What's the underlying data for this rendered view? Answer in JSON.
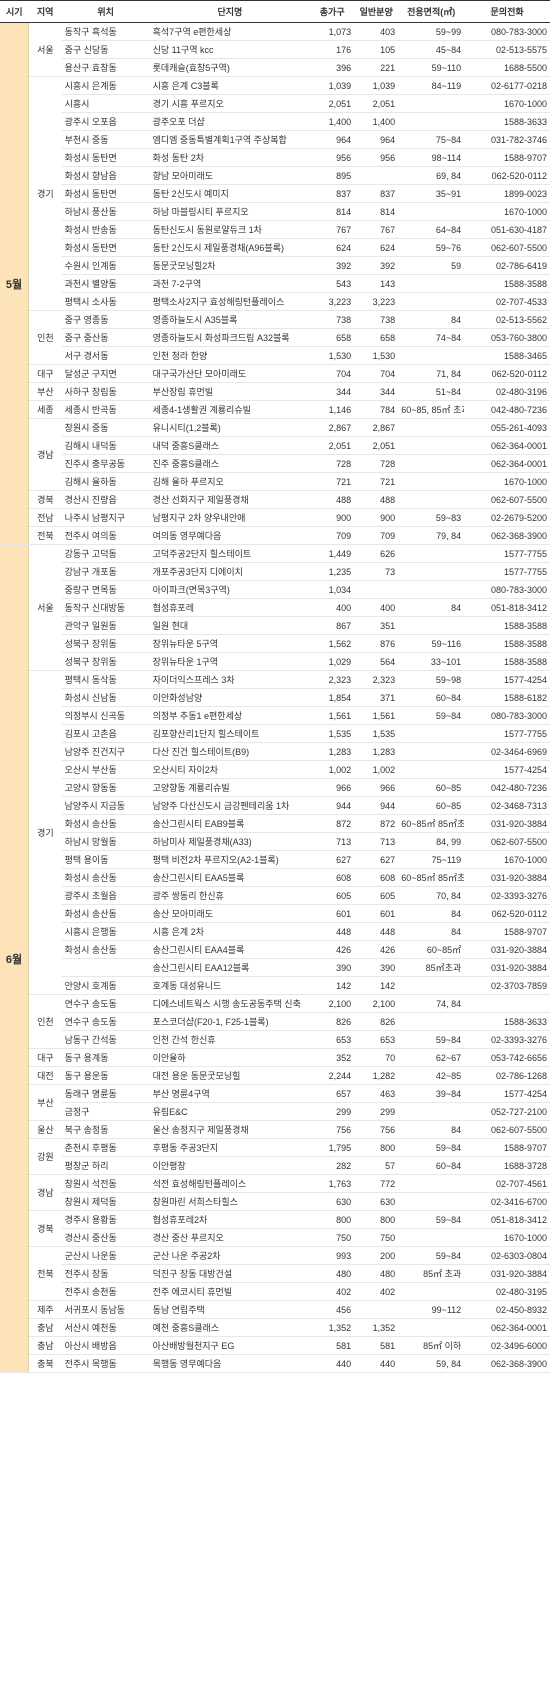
{
  "headers": {
    "period": "시기",
    "region": "지역",
    "location": "위치",
    "name": "단지명",
    "total": "총가구",
    "general": "일반분양",
    "area": "전용면적(㎡)",
    "tel": "문의전화"
  },
  "periods": [
    {
      "label": "5월",
      "regions": [
        {
          "label": "서울",
          "rows": [
            {
              "loc": "동작구 흑석동",
              "name": "흑석7구역 e편한세상",
              "total": "1,073",
              "gen": "403",
              "area": "59~99",
              "tel": "080-783-3000"
            },
            {
              "loc": "중구 신당동",
              "name": "신당 11구역 kcc",
              "total": "176",
              "gen": "105",
              "area": "45~84",
              "tel": "02-513-5575"
            },
            {
              "loc": "용산구 효창동",
              "name": "롯데캐슬(효창5구역)",
              "total": "396",
              "gen": "221",
              "area": "59~110",
              "tel": "1688-5500"
            }
          ]
        },
        {
          "label": "경기",
          "rows": [
            {
              "loc": "시흥시 은계동",
              "name": "시흥 은계 C3블록",
              "total": "1,039",
              "gen": "1,039",
              "area": "84~119",
              "tel": "02-6177-0218"
            },
            {
              "loc": "시흥시",
              "name": "경기 시흥 푸르지오",
              "total": "2,051",
              "gen": "2,051",
              "area": "",
              "tel": "1670-1000"
            },
            {
              "loc": "광주시 오포읍",
              "name": "광주오포 더샵",
              "total": "1,400",
              "gen": "1,400",
              "area": "",
              "tel": "1588-3633"
            },
            {
              "loc": "부천시 중동",
              "name": "엠디엠 중동특별계획1구역 주상복합",
              "total": "964",
              "gen": "964",
              "area": "75~84",
              "tel": "031-782-3746"
            },
            {
              "loc": "화성시 동탄면",
              "name": "화성 동탄 2차",
              "total": "956",
              "gen": "956",
              "area": "98~114",
              "tel": "1588-9707"
            },
            {
              "loc": "화성시 향남읍",
              "name": "향남 모아미래도",
              "total": "895",
              "gen": "",
              "area": "69, 84",
              "tel": "062-520-0112"
            },
            {
              "loc": "화성시 동탄면",
              "name": "동탄 2신도시 예미지",
              "total": "837",
              "gen": "837",
              "area": "35~91",
              "tel": "1899-0023"
            },
            {
              "loc": "하남시 풍산동",
              "name": "하남 마블링시티 푸르지오",
              "total": "814",
              "gen": "814",
              "area": "",
              "tel": "1670-1000"
            },
            {
              "loc": "화성시 반송동",
              "name": "동탄신도시 동원로얄듀크 1차",
              "total": "767",
              "gen": "767",
              "area": "64~84",
              "tel": "051-630-4187"
            },
            {
              "loc": "화성시 동탄면",
              "name": "동탄 2신도시 제일풍경채(A96블록)",
              "total": "624",
              "gen": "624",
              "area": "59~76",
              "tel": "062-607-5500"
            },
            {
              "loc": "수원시 인계동",
              "name": "동문굿모닝힐2차",
              "total": "392",
              "gen": "392",
              "area": "59",
              "tel": "02-786-6419"
            },
            {
              "loc": "과천시 별양동",
              "name": "과천 7-2구역",
              "total": "543",
              "gen": "143",
              "area": "",
              "tel": "1588-3588"
            },
            {
              "loc": "평택시 소사동",
              "name": "평택소사2지구 효성해링턴플레이스",
              "total": "3,223",
              "gen": "3,223",
              "area": "",
              "tel": "02-707-4533"
            }
          ]
        },
        {
          "label": "인천",
          "rows": [
            {
              "loc": "중구 영종동",
              "name": "영종하늘도시 A35블록",
              "total": "738",
              "gen": "738",
              "area": "84",
              "tel": "02-513-5562"
            },
            {
              "loc": "중구 중산동",
              "name": "영종하늘도시 화성파크드림 A32블록",
              "total": "658",
              "gen": "658",
              "area": "74~84",
              "tel": "053-760-3800"
            },
            {
              "loc": "서구 경서동",
              "name": "인천 청라 한양",
              "total": "1,530",
              "gen": "1,530",
              "area": "",
              "tel": "1588-3465"
            }
          ]
        },
        {
          "label": "대구",
          "rows": [
            {
              "loc": "달성군 구지면",
              "name": "대구국가산단 모아미래도",
              "total": "704",
              "gen": "704",
              "area": "71, 84",
              "tel": "062-520-0112"
            }
          ]
        },
        {
          "label": "부산",
          "rows": [
            {
              "loc": "사하구 장림동",
              "name": "부산장림 휴먼빌",
              "total": "344",
              "gen": "344",
              "area": "51~84",
              "tel": "02-480-3196"
            }
          ]
        },
        {
          "label": "세종",
          "rows": [
            {
              "loc": "세종시 반곡동",
              "name": "세종4-1생활권 계룡리슈빌",
              "total": "1,146",
              "gen": "784",
              "area": "60~85, 85㎡ 초과",
              "tel": "042-480-7236"
            }
          ]
        },
        {
          "label": "경남",
          "rows": [
            {
              "loc": "창원시 중동",
              "name": "유니시티(1,2블록)",
              "total": "2,867",
              "gen": "2,867",
              "area": "",
              "tel": "055-261-4093"
            },
            {
              "loc": "김해시 내덕동",
              "name": "내덕 중흥S클래스",
              "total": "2,051",
              "gen": "2,051",
              "area": "",
              "tel": "062-364-0001"
            },
            {
              "loc": "진주시 충무공동",
              "name": "진주 중흥S클래스",
              "total": "728",
              "gen": "728",
              "area": "",
              "tel": "062-364-0001"
            },
            {
              "loc": "김해시 율하동",
              "name": "김해 율하 푸르지오",
              "total": "721",
              "gen": "721",
              "area": "",
              "tel": "1670-1000"
            }
          ]
        },
        {
          "label": "경북",
          "rows": [
            {
              "loc": "경산시 진량읍",
              "name": "경산 선화지구 제일풍경채",
              "total": "488",
              "gen": "488",
              "area": "",
              "tel": "062-607-5500"
            }
          ]
        },
        {
          "label": "전남",
          "rows": [
            {
              "loc": "나주시 남평지구",
              "name": "남평지구 2차 양우내안애",
              "total": "900",
              "gen": "900",
              "area": "59~83",
              "tel": "02-2679-5200"
            }
          ]
        },
        {
          "label": "전북",
          "rows": [
            {
              "loc": "전주시 여의동",
              "name": "여의동 영무예다음",
              "total": "709",
              "gen": "709",
              "area": "79, 84",
              "tel": "062-368-3900"
            }
          ]
        }
      ]
    },
    {
      "label": "6월",
      "regions": [
        {
          "label": "서울",
          "rows": [
            {
              "loc": "강동구 고덕동",
              "name": "고덕주공2단지 힐스테이트",
              "total": "1,449",
              "gen": "626",
              "area": "",
              "tel": "1577-7755"
            },
            {
              "loc": "강남구 개포동",
              "name": "개포주공3단지 디에이치",
              "total": "1,235",
              "gen": "73",
              "area": "",
              "tel": "1577-7755"
            },
            {
              "loc": "중랑구 면목동",
              "name": "아이파크(면목3구역)",
              "total": "1,034",
              "gen": "",
              "area": "",
              "tel": "080-783-3000"
            },
            {
              "loc": "동작구 신대방동",
              "name": "협성휴포레",
              "total": "400",
              "gen": "400",
              "area": "84",
              "tel": "051-818-3412"
            },
            {
              "loc": "관악구 일원동",
              "name": "일원 현대",
              "total": "867",
              "gen": "351",
              "area": "",
              "tel": "1588-3588"
            },
            {
              "loc": "성북구 장위동",
              "name": "장위뉴타운 5구역",
              "total": "1,562",
              "gen": "876",
              "area": "59~116",
              "tel": "1588-3588"
            },
            {
              "loc": "성북구 장위동",
              "name": "장위뉴타운 1구역",
              "total": "1,029",
              "gen": "564",
              "area": "33~101",
              "tel": "1588-3588"
            }
          ]
        },
        {
          "label": "경기",
          "rows": [
            {
              "loc": "평택시 동삭동",
              "name": "자이더익스프레스 3차",
              "total": "2,323",
              "gen": "2,323",
              "area": "59~98",
              "tel": "1577-4254"
            },
            {
              "loc": "화성시 신남동",
              "name": "이안화성남양",
              "total": "1,854",
              "gen": "371",
              "area": "60~84",
              "tel": "1588-6182"
            },
            {
              "loc": "의정부시 신곡동",
              "name": "의정부 추동1 e편한세상",
              "total": "1,561",
              "gen": "1,561",
              "area": "59~84",
              "tel": "080-783-3000"
            },
            {
              "loc": "김포시 고촌읍",
              "name": "김포향산리1단지 힐스테이트",
              "total": "1,535",
              "gen": "1,535",
              "area": "",
              "tel": "1577-7755"
            },
            {
              "loc": "남양주 진건지구",
              "name": "다산 진건 힐스테이트(B9)",
              "total": "1,283",
              "gen": "1,283",
              "area": "",
              "tel": "02-3464-6969"
            },
            {
              "loc": "오산시 부산동",
              "name": "오산시티 자이2차",
              "total": "1,002",
              "gen": "1,002",
              "area": "",
              "tel": "1577-4254"
            },
            {
              "loc": "고양시 향동동",
              "name": "고양향동 계룡리슈빌",
              "total": "966",
              "gen": "966",
              "area": "60~85",
              "tel": "042-480-7236"
            },
            {
              "loc": "남양주시 지금동",
              "name": "남양주 다산신도시 금강펜테리움 1차",
              "total": "944",
              "gen": "944",
              "area": "60~85",
              "tel": "02-3468-7313"
            },
            {
              "loc": "화성시 송산동",
              "name": "송산그린시티 EAB9블록",
              "total": "872",
              "gen": "872",
              "area": "60~85㎡ 85㎡초과",
              "tel": "031-920-3884"
            },
            {
              "loc": "하남시 망월동",
              "name": "하남미사 제일풍경채(A33)",
              "total": "713",
              "gen": "713",
              "area": "84, 99",
              "tel": "062-607-5500"
            },
            {
              "loc": "평택 용이동",
              "name": "평택 비전2차 푸르지오(A2-1블록)",
              "total": "627",
              "gen": "627",
              "area": "75~119",
              "tel": "1670-1000"
            },
            {
              "loc": "화성시 송산동",
              "name": "송산그린시티 EAA5블록",
              "total": "608",
              "gen": "608",
              "area": "60~85㎡ 85㎡초과",
              "tel": "031-920-3884"
            },
            {
              "loc": "광주시 초월읍",
              "name": "광주 쌍동리 한신휴",
              "total": "605",
              "gen": "605",
              "area": "70, 84",
              "tel": "02-3393-3276"
            },
            {
              "loc": "화성시 송산동",
              "name": "송산 모아미래도",
              "total": "601",
              "gen": "601",
              "area": "84",
              "tel": "062-520-0112"
            },
            {
              "loc": "시흥시 은행동",
              "name": "시흥 은계 2차",
              "total": "448",
              "gen": "448",
              "area": "84",
              "tel": "1588-9707"
            },
            {
              "loc": "화성시 송산동",
              "name": "송산그린시티 EAA4블록",
              "total": "426",
              "gen": "426",
              "area": "60~85㎡",
              "tel": "031-920-3884"
            },
            {
              "loc": "",
              "name": "송산그린시티 EAA12블록",
              "total": "390",
              "gen": "390",
              "area": "85㎡초과",
              "tel": "031-920-3884"
            },
            {
              "loc": "안양시 호계동",
              "name": "호계동 대성유니드",
              "total": "142",
              "gen": "142",
              "area": "",
              "tel": "02-3703-7859"
            }
          ]
        },
        {
          "label": "인천",
          "rows": [
            {
              "loc": "연수구 송도동",
              "name": "디에스네트웍스 시행 송도공동주택 신축",
              "total": "2,100",
              "gen": "2,100",
              "area": "74, 84",
              "tel": ""
            },
            {
              "loc": "연수구 송도동",
              "name": "포스코더샵(F20-1, F25-1블록)",
              "total": "826",
              "gen": "826",
              "area": "",
              "tel": "1588-3633"
            },
            {
              "loc": "남동구 간석동",
              "name": "인천 간석 한신휴",
              "total": "653",
              "gen": "653",
              "area": "59~84",
              "tel": "02-3393-3276"
            }
          ]
        },
        {
          "label": "대구",
          "rows": [
            {
              "loc": "동구 용계동",
              "name": "이안율하",
              "total": "352",
              "gen": "70",
              "area": "62~67",
              "tel": "053-742-6656"
            }
          ]
        },
        {
          "label": "대전",
          "rows": [
            {
              "loc": "동구 용운동",
              "name": "대전 용운 동문굿모닝힐",
              "total": "2,244",
              "gen": "1,282",
              "area": "42~85",
              "tel": "02-786-1268"
            }
          ]
        },
        {
          "label": "부산",
          "rows": [
            {
              "loc": "동래구 명륜동",
              "name": "부산 명륜4구역",
              "total": "657",
              "gen": "463",
              "area": "39~84",
              "tel": "1577-4254"
            },
            {
              "loc": "금정구",
              "name": "유림E&C",
              "total": "299",
              "gen": "299",
              "area": "",
              "tel": "052-727-2100"
            }
          ]
        },
        {
          "label": "울산",
          "rows": [
            {
              "loc": "북구 송정동",
              "name": "울산 송정지구 제일풍경채",
              "total": "756",
              "gen": "756",
              "area": "84",
              "tel": "062-607-5500"
            }
          ]
        },
        {
          "label": "강원",
          "rows": [
            {
              "loc": "춘천시 후평동",
              "name": "후평동 주공3단지",
              "total": "1,795",
              "gen": "800",
              "area": "59~84",
              "tel": "1588-9707"
            },
            {
              "loc": "평창군 하리",
              "name": "이안평창",
              "total": "282",
              "gen": "57",
              "area": "60~84",
              "tel": "1688-3728"
            }
          ]
        },
        {
          "label": "경남",
          "rows": [
            {
              "loc": "창원시 석전동",
              "name": "석전 효성해링턴플레이스",
              "total": "1,763",
              "gen": "772",
              "area": "",
              "tel": "02-707-4561"
            },
            {
              "loc": "창원시 제덕동",
              "name": "창원마린 서희스타힐스",
              "total": "630",
              "gen": "630",
              "area": "",
              "tel": "02-3416-6700"
            }
          ]
        },
        {
          "label": "경북",
          "rows": [
            {
              "loc": "경주시 용황동",
              "name": "협성휴포레2차",
              "total": "800",
              "gen": "800",
              "area": "59~84",
              "tel": "051-818-3412"
            },
            {
              "loc": "경산시 중산동",
              "name": "경산 중산 푸르지오",
              "total": "750",
              "gen": "750",
              "area": "",
              "tel": "1670-1000"
            }
          ]
        },
        {
          "label": "전북",
          "rows": [
            {
              "loc": "군산시 나운동",
              "name": "군산 나운 주공2차",
              "total": "993",
              "gen": "200",
              "area": "59~84",
              "tel": "02-6303-0804"
            },
            {
              "loc": "전주시 장동",
              "name": "덕진구 장동 대방건설",
              "total": "480",
              "gen": "480",
              "area": "85㎡ 초과",
              "tel": "031-920-3884"
            },
            {
              "loc": "전주시 송천동",
              "name": "전주 에코시티 휴먼빌",
              "total": "402",
              "gen": "402",
              "area": "",
              "tel": "02-480-3195"
            }
          ]
        },
        {
          "label": "제주",
          "rows": [
            {
              "loc": "서귀포시 동남동",
              "name": "동남 연립주택",
              "total": "456",
              "gen": "",
              "area": "99~112",
              "tel": "02-450-8932"
            }
          ]
        },
        {
          "label": "충남",
          "rows": [
            {
              "loc": "서산시 예천동",
              "name": "예천 중흥S클래스",
              "total": "1,352",
              "gen": "1,352",
              "area": "",
              "tel": "062-364-0001"
            }
          ]
        },
        {
          "label": "충남",
          "rows": [
            {
              "loc": "아산시 배방읍",
              "name": "아산배방월천지구 EG",
              "total": "581",
              "gen": "581",
              "area": "85㎡ 이하",
              "tel": "02-3496-6000"
            }
          ]
        },
        {
          "label": "충북",
          "rows": [
            {
              "loc": "전주시 목행동",
              "name": "목행동 영무예다음",
              "total": "440",
              "gen": "440",
              "area": "59, 84",
              "tel": "062-368-3900"
            }
          ]
        }
      ]
    }
  ]
}
